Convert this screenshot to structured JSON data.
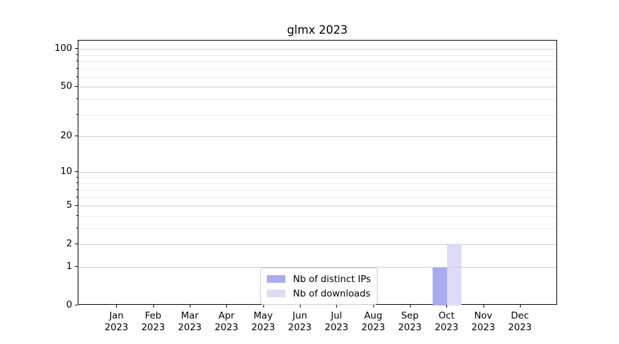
{
  "chart_data": {
    "type": "bar",
    "title": "glmx 2023",
    "categories": [
      "Jan",
      "Feb",
      "Mar",
      "Apr",
      "May",
      "Jun",
      "Jul",
      "Aug",
      "Sep",
      "Oct",
      "Nov",
      "Dec"
    ],
    "year_label": "2023",
    "series": [
      {
        "name": "Nb of distinct IPs",
        "color": "#aaaaf0",
        "values": [
          0,
          0,
          0,
          0,
          0,
          0,
          0,
          0,
          0,
          1,
          0,
          0
        ]
      },
      {
        "name": "Nb of downloads",
        "color": "#dcdcf8",
        "values": [
          0,
          0,
          0,
          0,
          0,
          0,
          0,
          0,
          0,
          2,
          0,
          0
        ]
      }
    ],
    "y_axis": {
      "scale": "log1p",
      "major_ticks": [
        0,
        1,
        2,
        5,
        10,
        20,
        50,
        100
      ],
      "minor_ticks": [
        3,
        4,
        6,
        7,
        8,
        9,
        30,
        40,
        60,
        70,
        80,
        90
      ],
      "range": [
        0,
        117
      ]
    },
    "xlabel": "",
    "ylabel": "",
    "grid": "horizontal",
    "legend_position": "lower center"
  },
  "colors": {
    "background": "#ffffff",
    "spine": "#000000",
    "grid_major": "#cdcdcd",
    "grid_minor": "#eaeaea",
    "text": "#000000",
    "legend_border": "#cccccc"
  }
}
